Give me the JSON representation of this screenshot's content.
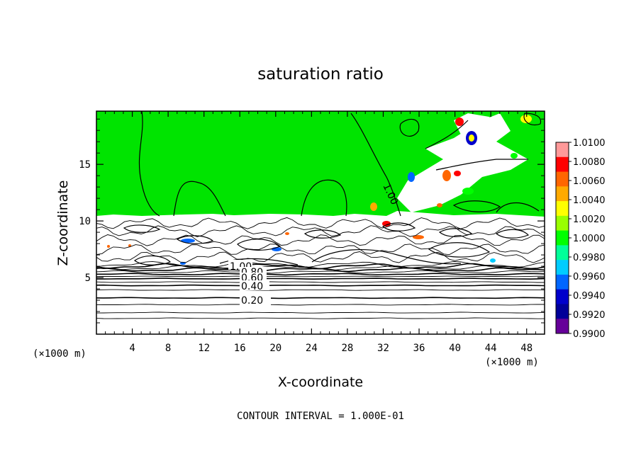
{
  "chart_data": {
    "type": "heatmap",
    "title": "saturation ratio",
    "xlabel": "X-coordinate",
    "ylabel": "Z-coordinate",
    "x_unit": "(×1000 m)",
    "xlim": [
      0,
      50
    ],
    "ylim": [
      0,
      19.7
    ],
    "x_ticks": [
      "4",
      "8",
      "12",
      "16",
      "20",
      "24",
      "28",
      "32",
      "36",
      "40",
      "44",
      "48"
    ],
    "x_tick_values": [
      4,
      8,
      12,
      16,
      20,
      24,
      28,
      32,
      36,
      40,
      44,
      48
    ],
    "y_ticks": [
      "5",
      "10",
      "15"
    ],
    "y_tick_values": [
      5,
      10,
      15
    ],
    "colorbar": {
      "labels": [
        "1.0100",
        "1.0080",
        "1.0060",
        "1.0040",
        "1.0020",
        "1.0000",
        "0.9980",
        "0.9960",
        "0.9940",
        "0.9920",
        "0.9900"
      ],
      "colors": [
        "#ff9999",
        "#ff0000",
        "#ff6600",
        "#ffaa00",
        "#ffff00",
        "#99ff00",
        "#00ff00",
        "#00ff99",
        "#00ccff",
        "#0066ff",
        "#0000cc",
        "#000099",
        "#660099"
      ]
    },
    "contour_labels": [
      "1.00",
      "0.80",
      "0.60",
      "0.40",
      "0.20",
      "1.00"
    ],
    "contour_interval_text": "CONTOUR INTERVAL = 1.000E-01",
    "field_colors": {
      "saturated": "#00e400",
      "unsaturated": "#ffffff"
    }
  }
}
